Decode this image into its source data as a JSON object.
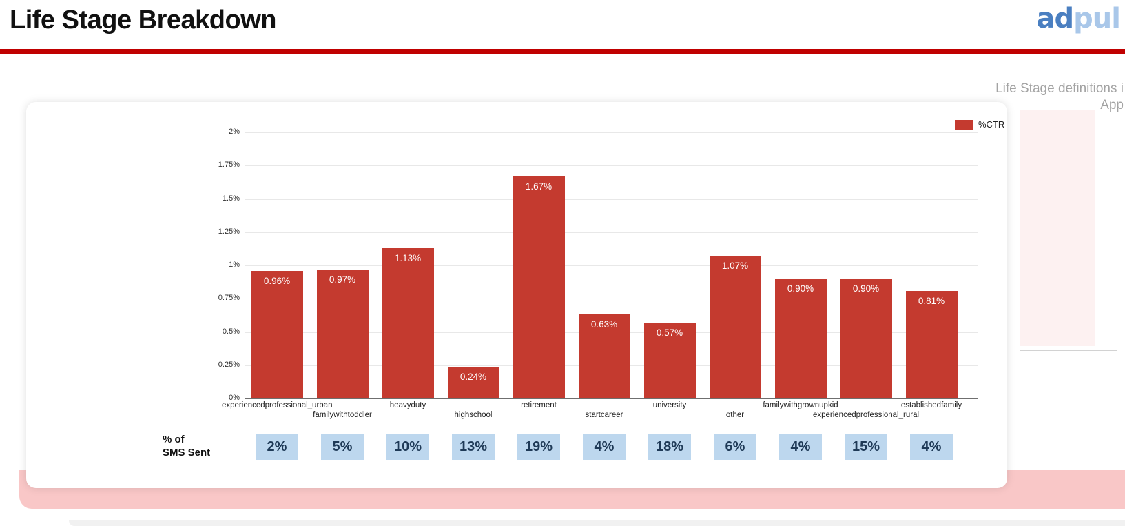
{
  "header": {
    "title": "Life Stage Breakdown",
    "rule_color": "#c00000",
    "logo": {
      "part1": "ad",
      "part2": "pul",
      "part1_color": "#4a7fc1",
      "part2_color": "#a9c7e9"
    },
    "note_line1": "Life Stage definitions i",
    "note_line2": "App"
  },
  "decor": {
    "pink_rect_color": "#fdf1f1",
    "pink_band_color": "#f9c7c7",
    "divider_color": "#d2d2d2"
  },
  "chart_data": {
    "type": "bar",
    "title": "",
    "categories": [
      "experiencedprofessional_urban",
      "familywithtoddler",
      "heavyduty",
      "highschool",
      "retirement",
      "startcareer",
      "university",
      "other",
      "familywithgrownupkid",
      "experiencedprofessional_rural",
      "establishedfamily"
    ],
    "series": [
      {
        "name": "%CTR",
        "values": [
          0.96,
          0.97,
          1.13,
          0.24,
          1.67,
          0.63,
          0.57,
          1.07,
          0.9,
          0.9,
          0.81
        ],
        "labels": [
          "0.96%",
          "0.97%",
          "1.13%",
          "0.24%",
          "1.67%",
          "0.63%",
          "0.57%",
          "1.07%",
          "0.90%",
          "0.90%",
          "0.81%"
        ]
      }
    ],
    "y_ticks": [
      "2%",
      "1.75%",
      "1.5%",
      "1.25%",
      "1%",
      "0.75%",
      "0.5%",
      "0.25%",
      "0%"
    ],
    "ylim": [
      0,
      2
    ],
    "grid": true,
    "legend": {
      "label": "%CTR",
      "position": "top-right"
    },
    "bar_color": "#c43a2f",
    "value_label_color": "#ffffff",
    "sms_row": {
      "label_line1": "% of",
      "label_line2": "SMS Sent",
      "values": [
        "2%",
        "5%",
        "10%",
        "13%",
        "19%",
        "4%",
        "18%",
        "6%",
        "4%",
        "15%",
        "4%"
      ],
      "box_fill": "#bdd7ee",
      "box_text_color": "#1f3a57"
    }
  }
}
